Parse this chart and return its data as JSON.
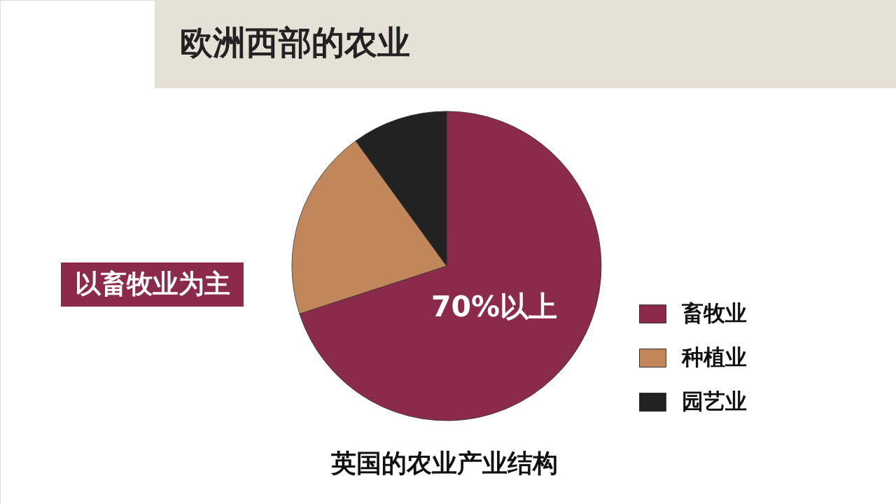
{
  "chart_data": {
    "type": "pie",
    "title": "欧洲西部的农业",
    "subtitle": "英国的农业产业结构",
    "categories": [
      "畜牧业",
      "种植业",
      "园艺业"
    ],
    "values": [
      70,
      20,
      10
    ],
    "colors": [
      "#8b2a4a",
      "#c1875b",
      "#222222"
    ],
    "legend": "right",
    "annotations": [
      "以畜牧业为主",
      "70%以上"
    ]
  }
}
